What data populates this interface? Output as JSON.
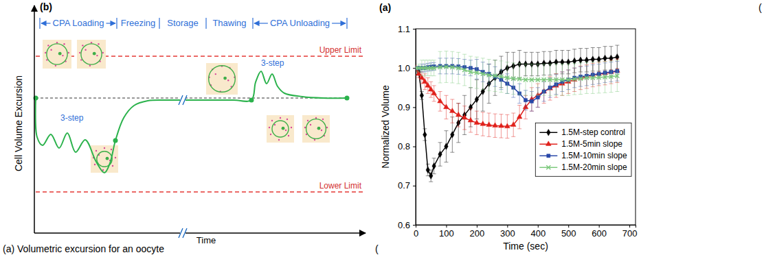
{
  "diagram": {
    "label": "(b)",
    "y_axis": "Cell Volume Excursion",
    "x_axis": "Time",
    "phases": [
      "CPA Loading",
      "Freezing",
      "Storage",
      "Thawing",
      "CPA Unloading"
    ],
    "upper_limit": "Upper Limit",
    "lower_limit": "Lower Limit",
    "step_labels": [
      "3-step",
      "3-step"
    ],
    "caption": "(a) Volumetric excursion for an oocyte",
    "fragments": [
      "(",
      "("
    ]
  },
  "chart_data": {
    "type": "line",
    "title": "(a)",
    "x_label": "Time (sec)",
    "y_label": "Normalized Volume",
    "xlim": [
      0,
      720
    ],
    "xticks": [
      0,
      100,
      200,
      300,
      400,
      500,
      600,
      700
    ],
    "ylim": [
      0.6,
      1.1
    ],
    "yticks": [
      0.6,
      0.7,
      0.8,
      0.9,
      {
        "value": 1,
        "label": "1.0"
      },
      1.1
    ],
    "legend": "right",
    "x": [
      0,
      10,
      20,
      30,
      40,
      50,
      60,
      80,
      100,
      120,
      140,
      160,
      180,
      200,
      220,
      240,
      260,
      280,
      300,
      320,
      340,
      360,
      380,
      400,
      420,
      440,
      460,
      480,
      500,
      520,
      540,
      560,
      580,
      600,
      620,
      640,
      660
    ],
    "series": [
      {
        "name": "1.5M-step control",
        "color": "#000000",
        "marker": "diamond",
        "values": [
          1.0,
          0.99,
          0.93,
          0.83,
          0.74,
          0.725,
          0.75,
          0.78,
          0.8,
          0.83,
          0.86,
          0.88,
          0.9,
          0.92,
          0.94,
          0.96,
          0.975,
          0.99,
          1.0,
          1.005,
          1.01,
          1.01,
          1.01,
          1.01,
          1.012,
          1.012,
          1.015,
          1.015,
          1.015,
          1.018,
          1.02,
          1.02,
          1.022,
          1.022,
          1.025,
          1.025,
          1.028
        ],
        "error": [
          0,
          0.005,
          0.01,
          0.015,
          0.015,
          0.015,
          0.02,
          0.03,
          0.04,
          0.045,
          0.05,
          0.05,
          0.05,
          0.05,
          0.05,
          0.05,
          0.045,
          0.04,
          0.04,
          0.035,
          0.035,
          0.03,
          0.03,
          0.03,
          0.03,
          0.03,
          0.03,
          0.03,
          0.03,
          0.03,
          0.03,
          0.03,
          0.03,
          0.03,
          0.03,
          0.03,
          0.03
        ]
      },
      {
        "name": "1.5M-5min slope",
        "color": "#e0201b",
        "marker": "triangle",
        "values": [
          1.0,
          0.985,
          0.975,
          0.965,
          0.955,
          0.945,
          0.935,
          0.915,
          0.9,
          0.89,
          0.88,
          0.873,
          0.866,
          0.86,
          0.857,
          0.855,
          0.853,
          0.852,
          0.851,
          0.855,
          0.875,
          0.9,
          0.92,
          0.93,
          0.94,
          0.948,
          0.955,
          0.96,
          0.965,
          0.97,
          0.975,
          0.978,
          0.982,
          0.985,
          0.987,
          0.99,
          0.993
        ],
        "error": [
          0,
          0.01,
          0.015,
          0.02,
          0.02,
          0.02,
          0.02,
          0.025,
          0.03,
          0.03,
          0.03,
          0.03,
          0.03,
          0.03,
          0.03,
          0.03,
          0.03,
          0.03,
          0.03,
          0.03,
          0.03,
          0.03,
          0.03,
          0.03,
          0.03,
          0.03,
          0.03,
          0.03,
          0.03,
          0.03,
          0.03,
          0.03,
          0.03,
          0.03,
          0.03,
          0.03,
          0.03
        ]
      },
      {
        "name": "1.5M-10min slope",
        "color": "#2746a8",
        "marker": "square",
        "values": [
          1.0,
          1.0,
          1.0,
          1.0,
          1.002,
          1.003,
          1.004,
          1.005,
          1.005,
          1.005,
          1.004,
          1.002,
          1.0,
          0.997,
          0.99,
          0.985,
          0.978,
          0.97,
          0.96,
          0.95,
          0.935,
          0.918,
          0.915,
          0.925,
          0.94,
          0.95,
          0.958,
          0.965,
          0.97,
          0.975,
          0.978,
          0.98,
          0.983,
          0.985,
          0.988,
          0.99,
          0.992
        ],
        "error": [
          0,
          0.005,
          0.01,
          0.01,
          0.01,
          0.01,
          0.01,
          0.02,
          0.02,
          0.02,
          0.02,
          0.02,
          0.02,
          0.025,
          0.025,
          0.025,
          0.025,
          0.025,
          0.025,
          0.025,
          0.025,
          0.025,
          0.025,
          0.025,
          0.025,
          0.025,
          0.025,
          0.025,
          0.025,
          0.025,
          0.025,
          0.025,
          0.025,
          0.025,
          0.025,
          0.025,
          0.025
        ]
      },
      {
        "name": "1.5M-20min slope",
        "color": "#7cc97c",
        "marker": "x",
        "values": [
          1.0,
          1.0,
          1.0,
          1.0,
          1.0,
          1.0,
          1.0,
          1.002,
          1.003,
          1.002,
          1.0,
          0.995,
          0.99,
          0.988,
          0.985,
          0.982,
          0.98,
          0.978,
          0.975,
          0.973,
          0.972,
          0.97,
          0.97,
          0.97,
          0.97,
          0.97,
          0.97,
          0.97,
          0.97,
          0.972,
          0.973,
          0.975,
          0.975,
          0.976,
          0.977,
          0.978,
          0.98
        ],
        "error": [
          0,
          0.01,
          0.02,
          0.02,
          0.02,
          0.02,
          0.02,
          0.04,
          0.04,
          0.04,
          0.04,
          0.04,
          0.04,
          0.04,
          0.04,
          0.04,
          0.04,
          0.04,
          0.04,
          0.04,
          0.04,
          0.04,
          0.04,
          0.04,
          0.04,
          0.04,
          0.04,
          0.04,
          0.04,
          0.04,
          0.04,
          0.04,
          0.04,
          0.04,
          0.04,
          0.04,
          0.04
        ]
      }
    ]
  }
}
